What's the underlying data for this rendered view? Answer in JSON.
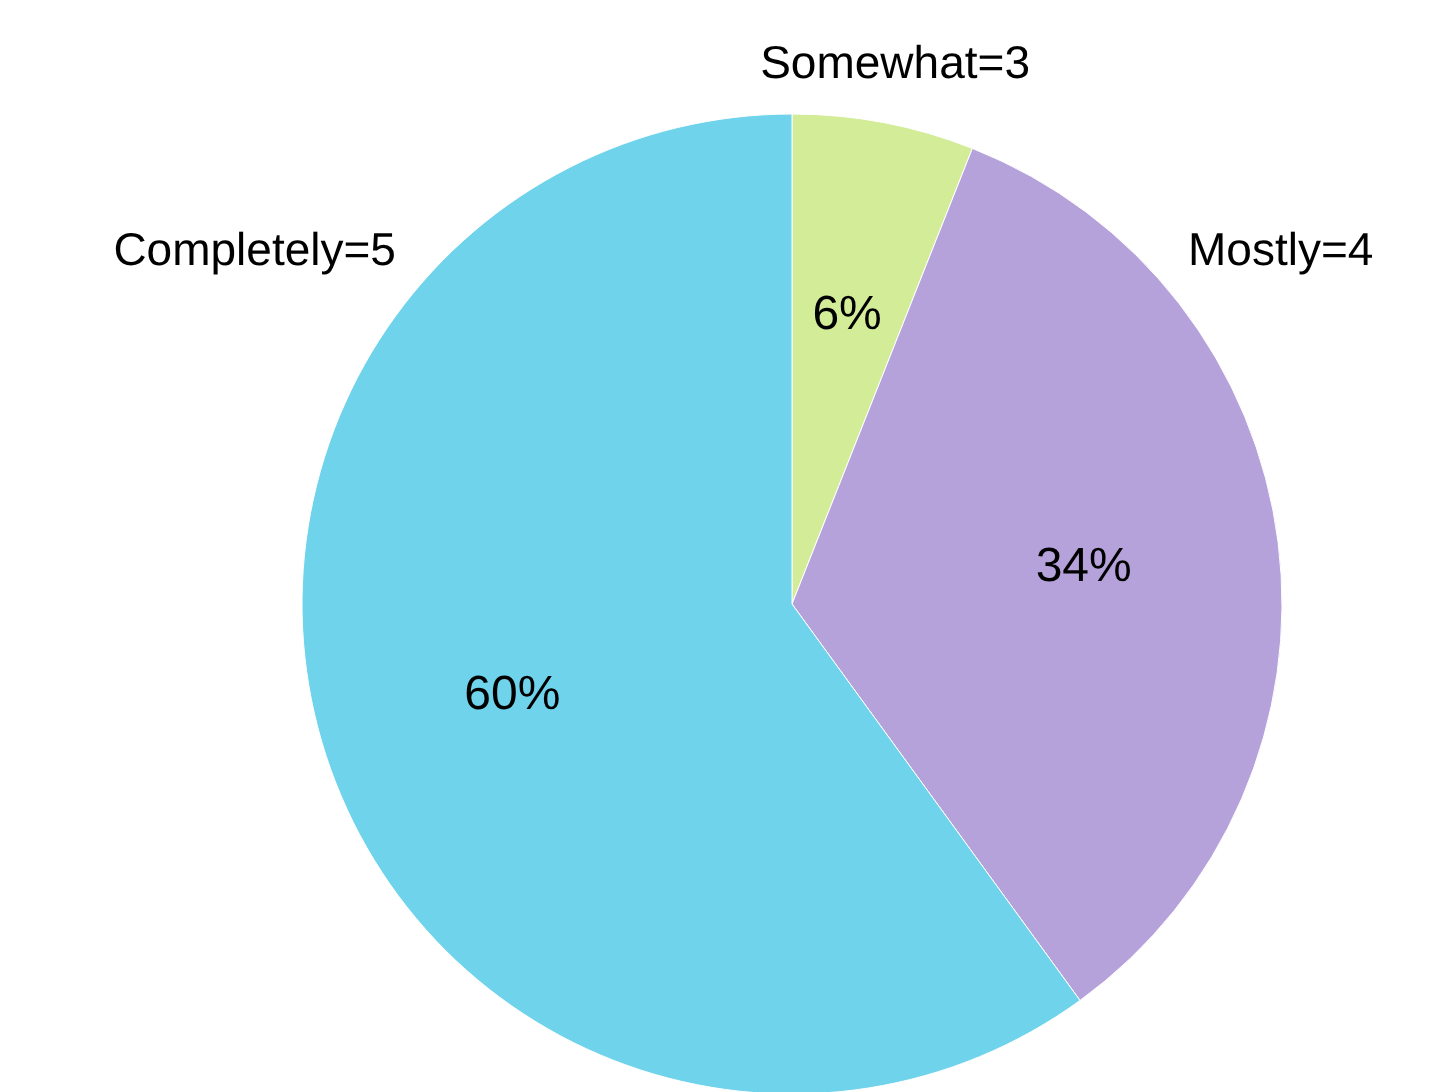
{
  "chart_data": {
    "type": "pie",
    "categories": [
      "Somewhat=3",
      "Mostly=4",
      "Completely=5"
    ],
    "values": [
      6,
      34,
      60
    ],
    "colors": [
      "#d2ec98",
      "#b5a2da",
      "#6fd3ec"
    ],
    "value_labels": [
      "6%",
      "34%",
      "60%"
    ]
  }
}
